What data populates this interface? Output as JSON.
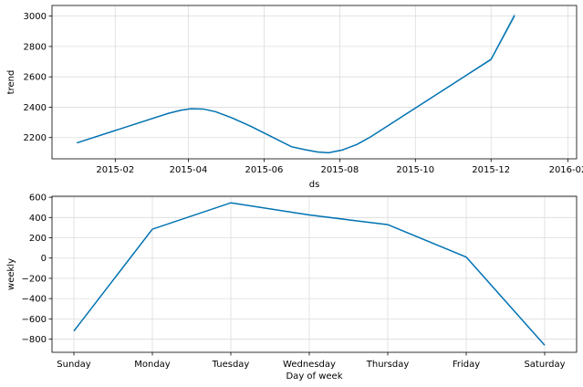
{
  "colors": {
    "line": "#0072B2",
    "band": "#0072B2",
    "grid": "#dcdcdc"
  },
  "chart_data": [
    {
      "type": "line",
      "title": "",
      "xlabel": "ds",
      "ylabel": "trend",
      "grid": true,
      "xaxis_kind": "date",
      "xlim": [
        "2014-12-12",
        "2016-02-08"
      ],
      "ylim": [
        2060,
        3070
      ],
      "xticks": [
        "2015-02-01",
        "2015-04-01",
        "2015-06-01",
        "2015-08-01",
        "2015-10-01",
        "2015-12-01",
        "2016-02-01"
      ],
      "xtick_labels": [
        "2015-02",
        "2015-04",
        "2015-06",
        "2015-08",
        "2015-10",
        "2015-12",
        "2016-02"
      ],
      "yticks": [
        2200,
        2400,
        2600,
        2800,
        3000
      ],
      "ytick_labels": [
        "2200",
        "2400",
        "2600",
        "2800",
        "3000"
      ],
      "series": [
        {
          "x": [
            "2015-01-01",
            "2015-03-16",
            "2015-03-26",
            "2015-04-03",
            "2015-04-13",
            "2015-04-23",
            "2015-05-06",
            "2015-05-21",
            "2015-06-06",
            "2015-06-23",
            "2015-07-04",
            "2015-07-14",
            "2015-07-23",
            "2015-08-03",
            "2015-08-15",
            "2015-08-26",
            "2015-09-14",
            "2015-12-01",
            "2015-12-20"
          ],
          "y": [
            2165,
            2360,
            2380,
            2390,
            2388,
            2370,
            2330,
            2275,
            2210,
            2140,
            2120,
            2105,
            2100,
            2118,
            2155,
            2205,
            2305,
            2715,
            3005
          ],
          "band_lower": [
            2165,
            2360,
            2380,
            2390,
            2388,
            2370,
            2330,
            2275,
            2210,
            2140,
            2120,
            2105,
            2100,
            2118,
            2155,
            2205,
            2305,
            2708,
            2985
          ],
          "band_upper": [
            2165,
            2360,
            2380,
            2390,
            2388,
            2370,
            2330,
            2275,
            2210,
            2140,
            2120,
            2105,
            2100,
            2118,
            2155,
            2205,
            2305,
            2722,
            3025
          ]
        }
      ]
    },
    {
      "type": "line",
      "title": "",
      "xlabel": "Day of week",
      "ylabel": "weekly",
      "grid": true,
      "categories": [
        "Sunday",
        "Monday",
        "Tuesday",
        "Wednesday",
        "Thursday",
        "Friday",
        "Saturday"
      ],
      "ylim": [
        -930,
        610
      ],
      "yticks": [
        600,
        400,
        200,
        0,
        -200,
        -400,
        -600,
        -800
      ],
      "ytick_labels": [
        "600",
        "400",
        "200",
        "0",
        "−200",
        "−400",
        "−600",
        "−800"
      ],
      "series": [
        {
          "values": [
            -720,
            285,
            545,
            425,
            330,
            10,
            -860
          ]
        }
      ]
    }
  ]
}
